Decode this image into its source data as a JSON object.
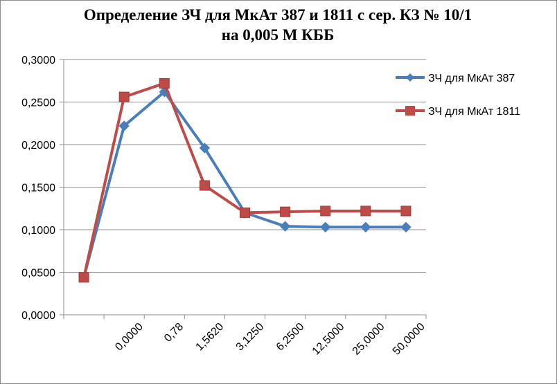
{
  "chart_data": {
    "type": "line",
    "title": "Определение ЗЧ для МкАт 387 и 1811 с сер. КЗ № 10/1",
    "title_line1": "Определение ЗЧ для МкАт 387 и 1811 с сер. КЗ № 10/1",
    "title_line2": "на 0,005 М КББ",
    "xlabel": "",
    "ylabel": "",
    "categories": [
      "",
      "0,0000",
      "0,78",
      "1,5620",
      "3,1250",
      "6,2500",
      "12,5000",
      "25,0000",
      "50,0000"
    ],
    "ylim": [
      0,
      0.3
    ],
    "yticks": [
      "0,0000",
      "0,0500",
      "0,1000",
      "0,1500",
      "0,2000",
      "0,2500",
      "0,3000"
    ],
    "grid": true,
    "legend_position": "right",
    "series": [
      {
        "name": "ЗЧ для МкАт 387",
        "color": "#4a7ebb",
        "marker": "diamond",
        "values": [
          0.044,
          0.222,
          0.262,
          0.196,
          0.12,
          0.104,
          0.103,
          0.103,
          0.103
        ]
      },
      {
        "name": "ЗЧ для МкАт 1811",
        "color": "#be4b48",
        "marker": "square",
        "values": [
          0.044,
          0.256,
          0.272,
          0.152,
          0.12,
          0.121,
          0.122,
          0.122,
          0.122
        ]
      }
    ]
  }
}
